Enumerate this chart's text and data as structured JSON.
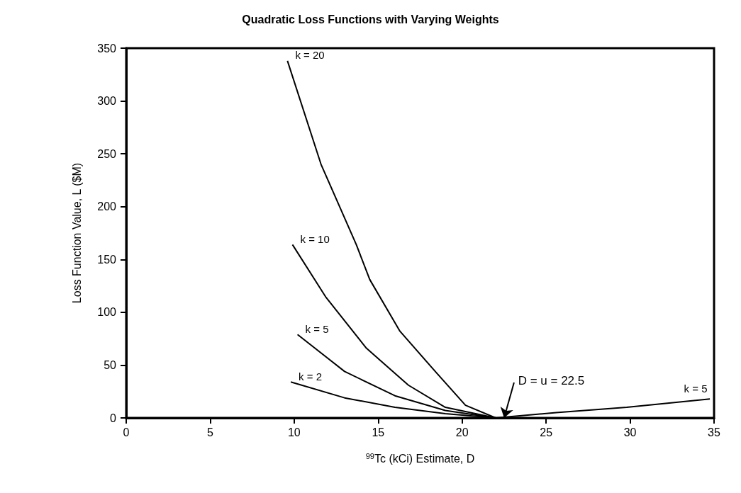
{
  "chart_data": {
    "type": "line",
    "title": "Quadratic Loss Functions with Varying Weights",
    "xlabel": "$^{99}$Tc (kCi) Estimate, D",
    "ylabel": "Loss Function Value, L ($M)",
    "xlim": [
      0,
      35
    ],
    "xticks": [
      0,
      5,
      10,
      15,
      20,
      25,
      30,
      35
    ],
    "ylim": [
      0,
      350
    ],
    "yticks": [
      0,
      50,
      100,
      150,
      200,
      250,
      300,
      350
    ],
    "grid": false,
    "legend": false,
    "marker": "none",
    "line_style": "solid",
    "series": [
      {
        "name": "k = 20",
        "color": "#000000",
        "x": [
          9.6,
          11.6,
          13.7,
          14.5,
          16.3,
          18.4,
          20.2,
          22
        ],
        "values": [
          338,
          240,
          164,
          131,
          82,
          44,
          12,
          0
        ]
      },
      {
        "name": "k = 10",
        "color": "#000000",
        "x": [
          9.9,
          11.9,
          14.3,
          16.8,
          19,
          22
        ],
        "values": [
          164,
          114,
          66,
          31,
          10,
          0
        ]
      },
      {
        "name": "k = 5",
        "color": "#000000",
        "x": [
          10.2,
          13,
          16,
          19,
          22,
          25.6,
          29.8,
          34.75
        ],
        "values": [
          79,
          44,
          21,
          7,
          0,
          5,
          10,
          18
        ]
      },
      {
        "name": "k = 2",
        "color": "#000000",
        "x": [
          9.8,
          13,
          16,
          19,
          22
        ],
        "values": [
          34,
          19,
          10,
          4,
          0
        ]
      }
    ],
    "annotations": [
      {
        "text": "D = u = 22.5",
        "x": 22.5,
        "y": 0
      }
    ]
  }
}
